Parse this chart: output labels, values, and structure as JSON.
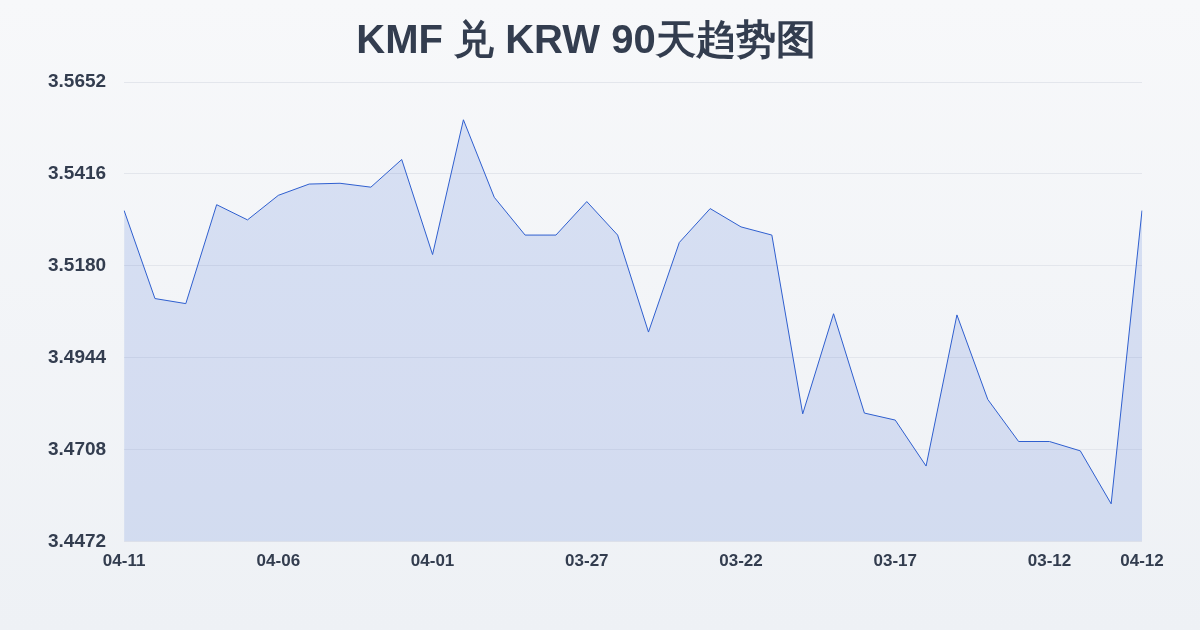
{
  "chart_data": {
    "type": "area",
    "title": "KMF 兑 KRW 90天趋势图",
    "categories": [
      "04-11",
      null,
      null,
      null,
      null,
      "04-06",
      null,
      null,
      null,
      null,
      "04-01",
      null,
      null,
      null,
      null,
      "03-27",
      null,
      null,
      null,
      null,
      "03-22",
      null,
      null,
      null,
      null,
      "03-17",
      null,
      null,
      null,
      null,
      "03-12",
      null,
      null,
      "04-12"
    ],
    "series": [
      {
        "color": "#2f5fcf",
        "values": [
          3.5322,
          3.5096,
          3.5083,
          3.5337,
          3.5298,
          3.5361,
          3.539,
          3.5392,
          3.5382,
          3.5453,
          3.5209,
          3.5555,
          3.5356,
          3.5259,
          3.5259,
          3.5345,
          3.5259,
          3.501,
          3.524,
          3.5327,
          3.528,
          3.5259,
          3.48,
          3.5057,
          3.4802,
          3.4784,
          3.4666,
          3.5054,
          3.4837,
          3.4729,
          3.4729,
          3.4705,
          3.4569,
          3.5322
        ]
      }
    ],
    "ylim": [
      3.4472,
      3.5652
    ],
    "yticks": [
      3.4472,
      3.4708,
      3.4944,
      {
        "value": 3.518,
        "label": "3.5180"
      },
      3.5416,
      3.5652
    ],
    "grid": "y",
    "legend": false,
    "marker": "none",
    "line_style": "solid"
  }
}
